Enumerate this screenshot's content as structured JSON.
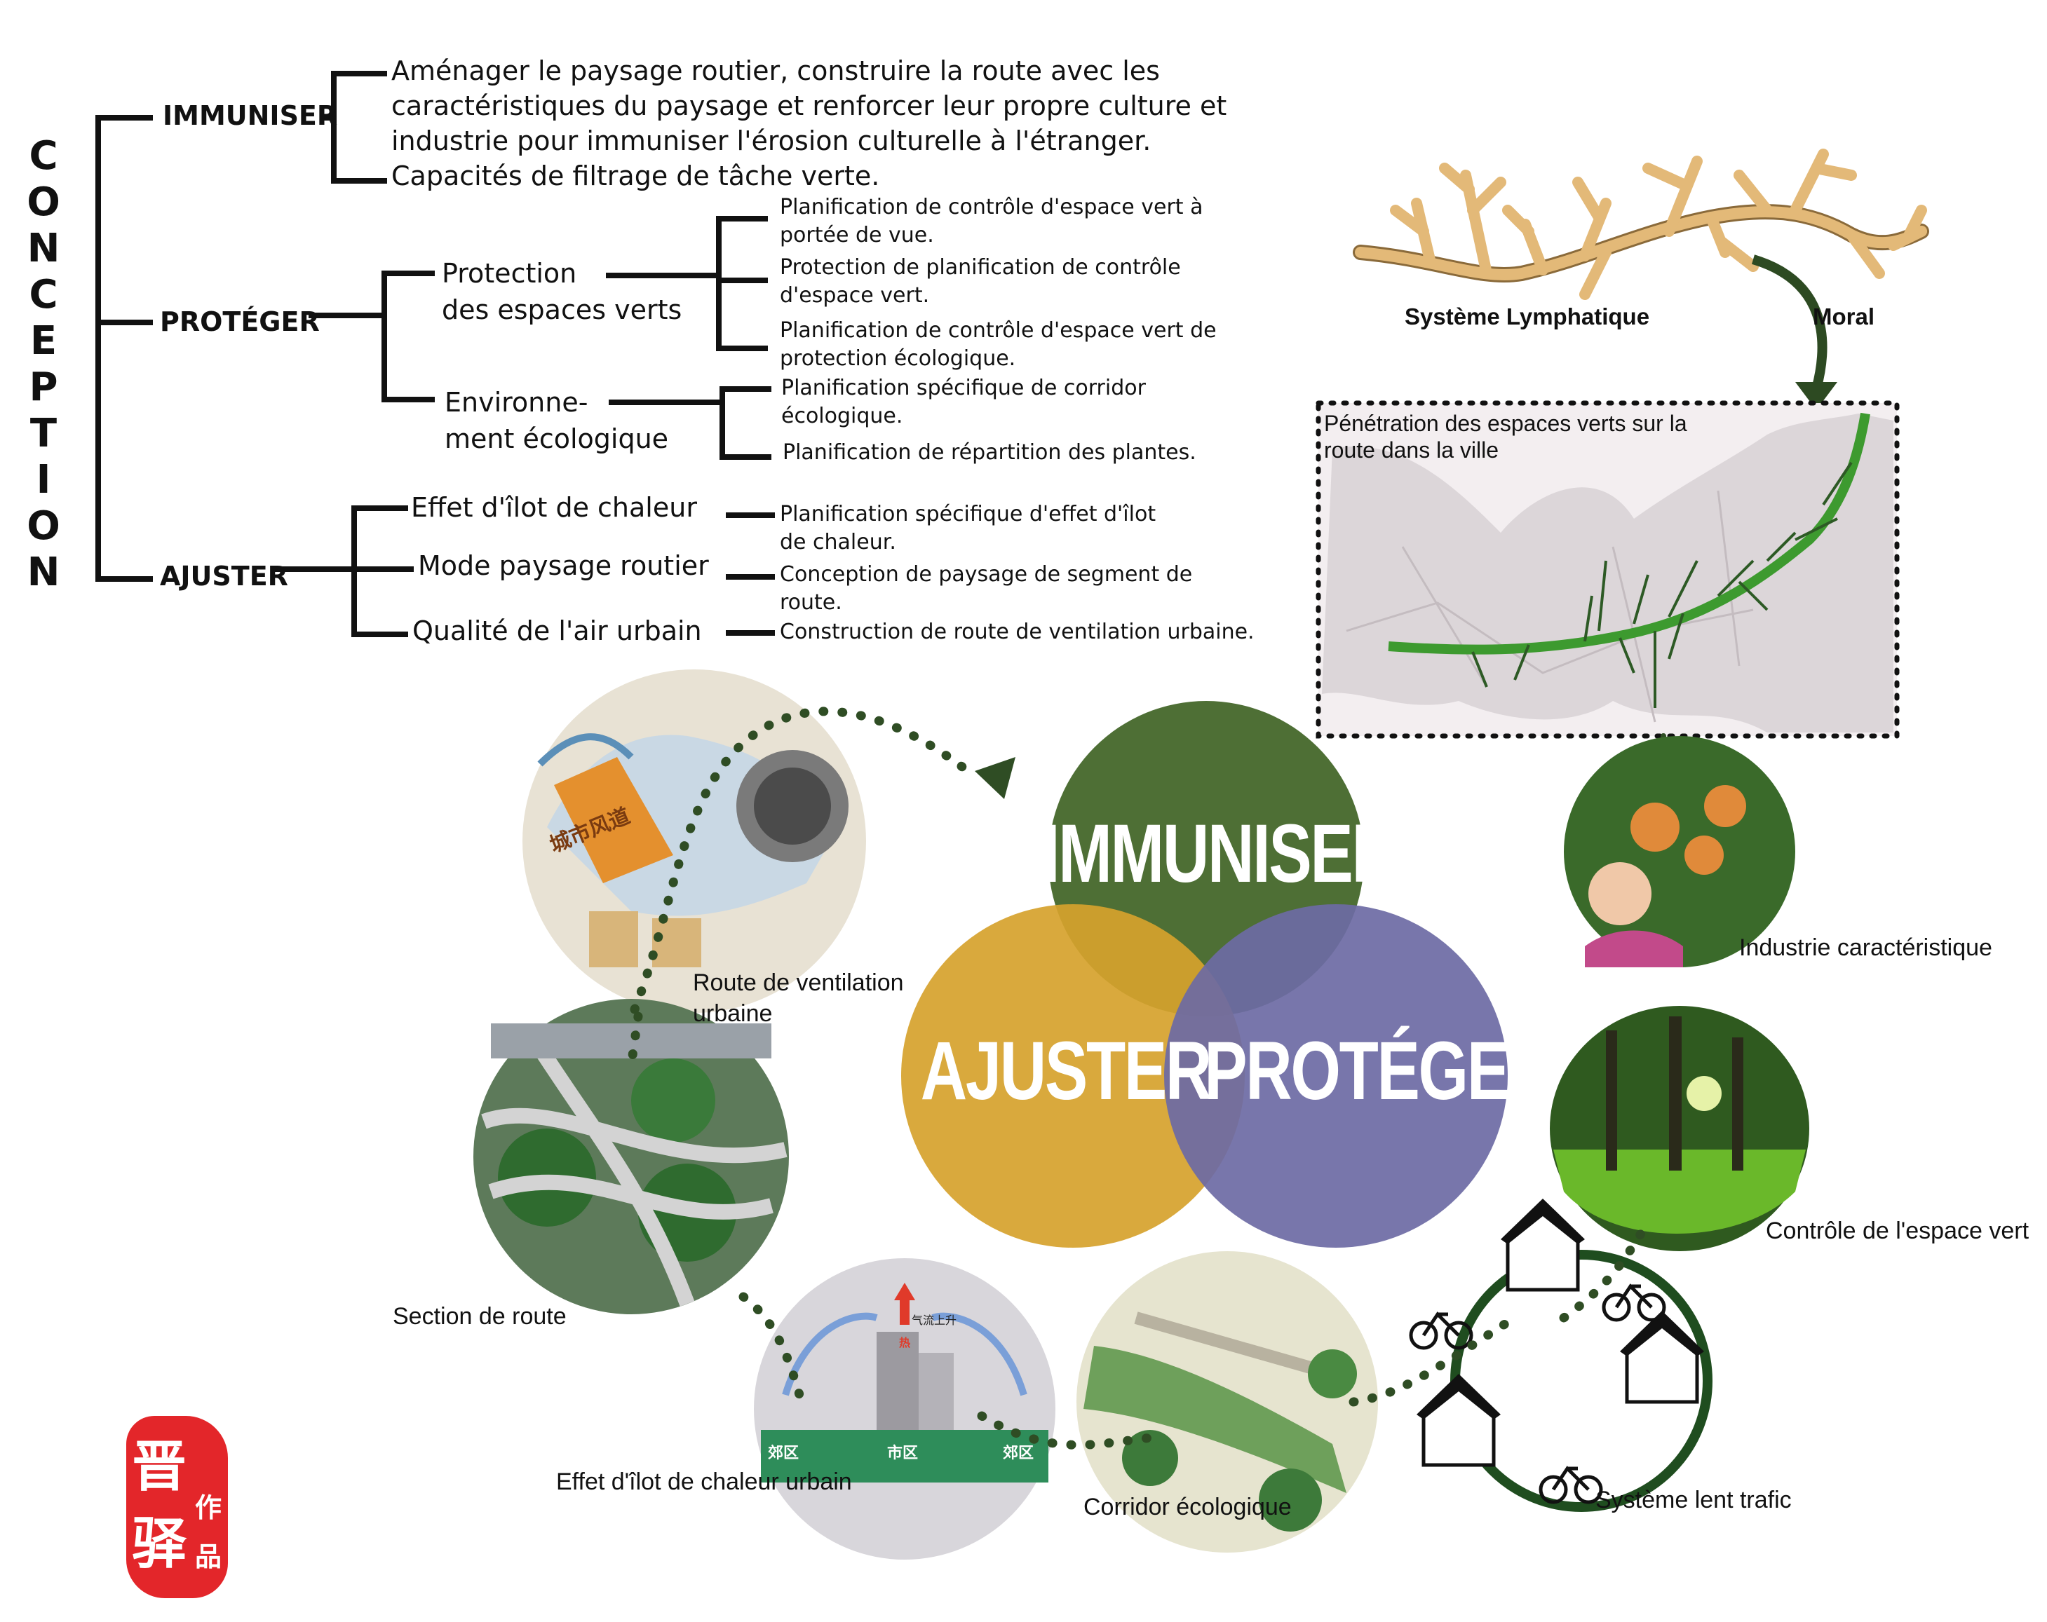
{
  "conception": {
    "title_letters": [
      "C",
      "O",
      "N",
      "C",
      "E",
      "P",
      "T",
      "I",
      "O",
      "N"
    ],
    "immuniser": {
      "label": "IMMUNISER",
      "lines": [
        "Aménager le paysage routier, construire la route avec les",
        "caractéristiques du paysage et renforcer leur propre culture et",
        "industrie pour immuniser l'érosion culturelle à l'étranger.",
        "Capacités de filtrage de tâche verte."
      ]
    },
    "proteger": {
      "label": "PROTÉGER",
      "protection": {
        "label_lines": [
          "Protection",
          "des espaces verts"
        ],
        "items": [
          [
            "Planification de contrôle d'espace vert à",
            "portée de vue."
          ],
          [
            "Protection de planification de contrôle",
            "d'espace vert."
          ],
          [
            "Planification de contrôle d'espace vert de",
            "protection écologique."
          ]
        ]
      },
      "environnement": {
        "label_lines": [
          "Environne-",
          "ment écologique"
        ],
        "items": [
          [
            "Planification spécifique de corridor",
            "écologique."
          ],
          [
            "Planification de répartition des plantes."
          ]
        ]
      }
    },
    "ajuster": {
      "label": "AJUSTER",
      "rows": [
        {
          "label": "Effet d'îlot de chaleur",
          "items": [
            "Planification spécifique d'effet d'îlot",
            "de chaleur."
          ]
        },
        {
          "label": "Mode paysage routier",
          "items": [
            "Conception de paysage de segment de",
            "route."
          ]
        },
        {
          "label": "Qualité de l'air urbain",
          "items": [
            "Construction de route de ventilation urbaine."
          ]
        }
      ]
    }
  },
  "top_right": {
    "lymph_label": "Système Lymphatique",
    "moral_label": "Moral",
    "map_caption_lines": [
      "Pénétration des espaces verts sur la",
      "route dans la ville"
    ]
  },
  "venn": {
    "top": {
      "label": "IMMUNISER",
      "color": "#3f6324"
    },
    "left": {
      "label": "AJUSTER",
      "color": "#d6a22c"
    },
    "right": {
      "label": "PROTÉGER",
      "color": "#6d6aa4"
    }
  },
  "captions": {
    "ventilation": [
      "Route de ventilation",
      "urbaine"
    ],
    "section": "Section de route",
    "heat_island": "Effet d'îlot de chaleur urbain",
    "corridor": "Corridor écologique",
    "slow_traffic": "Système lent trafic",
    "green_control": "Contrôle de l'espace vert",
    "industry": "Industrie caractéristique"
  },
  "illustration_text": {
    "wind_duct": "城市风道",
    "suburb_left": "郊区",
    "urban": "市区",
    "suburb_right": "郊区",
    "air_rise": "气流上升",
    "hot": "热"
  },
  "seal": {
    "big1": "晋",
    "big2": "驿",
    "small1": "作",
    "small2": "品"
  },
  "colors": {
    "dark_green": "#2d4a22",
    "dots": "#2f4d24",
    "bright_green": "#3d9a2f"
  }
}
